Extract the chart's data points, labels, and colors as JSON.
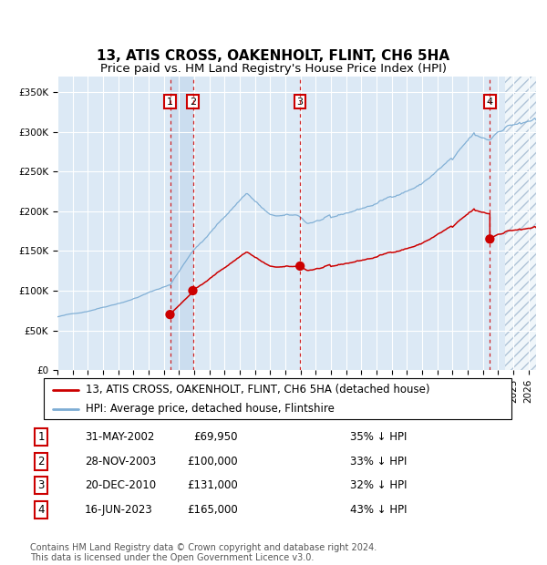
{
  "title": "13, ATIS CROSS, OAKENHOLT, FLINT, CH6 5HA",
  "subtitle": "Price paid vs. HM Land Registry's House Price Index (HPI)",
  "ylim": [
    0,
    370000
  ],
  "xlim_start": 1995.0,
  "xlim_end": 2026.5,
  "plot_bg_color": "#dce9f5",
  "grid_color": "#ffffff",
  "hpi_line_color": "#7dadd4",
  "price_line_color": "#cc0000",
  "sale_marker_color": "#cc0000",
  "sale_dot_size": 55,
  "dashed_line_color": "#cc0000",
  "future_hatch_start": 2024.46,
  "sale_dates_year": [
    2002.41,
    2003.91,
    2010.97,
    2023.46
  ],
  "sale_prices": [
    69950,
    100000,
    131000,
    165000
  ],
  "sale_labels": [
    "1",
    "2",
    "3",
    "4"
  ],
  "legend_entries": [
    "13, ATIS CROSS, OAKENHOLT, FLINT, CH6 5HA (detached house)",
    "HPI: Average price, detached house, Flintshire"
  ],
  "table_rows": [
    [
      "1",
      "31-MAY-2002",
      "£69,950",
      "35% ↓ HPI"
    ],
    [
      "2",
      "28-NOV-2003",
      "£100,000",
      "33% ↓ HPI"
    ],
    [
      "3",
      "20-DEC-2010",
      "£131,000",
      "32% ↓ HPI"
    ],
    [
      "4",
      "16-JUN-2023",
      "£165,000",
      "43% ↓ HPI"
    ]
  ],
  "footer": "Contains HM Land Registry data © Crown copyright and database right 2024.\nThis data is licensed under the Open Government Licence v3.0.",
  "title_fontsize": 11,
  "subtitle_fontsize": 9.5,
  "tick_fontsize": 7.5,
  "legend_fontsize": 8.5,
  "table_fontsize": 8.5,
  "footer_fontsize": 7
}
